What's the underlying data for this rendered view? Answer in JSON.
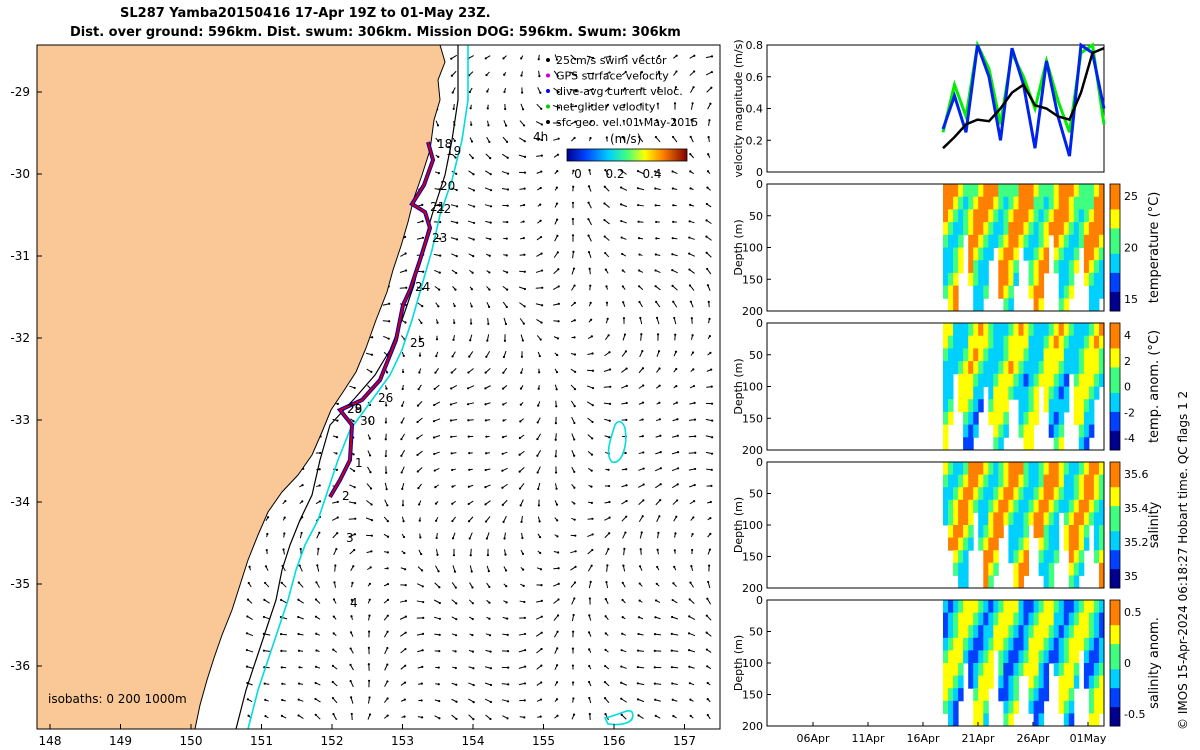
{
  "title": {
    "line1": "SL287 Yamba20150416 17-Apr 19Z to 01-May 23Z.",
    "line2": "Dist. over ground: 596km. Dist. swum: 306km. Mission DOG: 596km. Swum: 306km"
  },
  "map": {
    "lon_ticks": [
      "148",
      "149",
      "150",
      "151",
      "152",
      "153",
      "154",
      "155",
      "156",
      "157"
    ],
    "lat_ticks": [
      "-29",
      "-30",
      "-31",
      "-32",
      "-33",
      "-34",
      "-35",
      "-36"
    ],
    "legend": [
      "25cm/s swim vector",
      "GPS surface velocity",
      "dive-avg current veloc.",
      "net glider velocity",
      "sfc geo. vel. 01-May-2015"
    ],
    "legend_marker_colors": [
      "#000000",
      "#cc00cc",
      "#0000ff",
      "#00cc00",
      "#000000"
    ],
    "colorbar": {
      "hour_label": "4h",
      "units": "(m/s)",
      "ticks": [
        "0",
        "0.2",
        "0.4"
      ]
    },
    "day_labels": [
      "18",
      "19",
      "20",
      "21",
      "22",
      "23",
      "24",
      "25",
      "26",
      "28",
      "29",
      "30",
      "1",
      "2",
      "3",
      "4"
    ],
    "isobaths_label": "isobaths: 0   200  1000m",
    "land_color": "#f9c896",
    "track_color": "#cc0000",
    "track_glider_color": "#0000cc",
    "isobath_color": "#00dddd"
  },
  "chart_data": [
    {
      "type": "line",
      "ylabel": "velocity magnitude (m/s)",
      "ylim": [
        0,
        0.8
      ],
      "yticks": [
        "0",
        "0.2",
        "0.4",
        "0.6",
        "0.8"
      ],
      "x_dates": [
        "17-Apr",
        "18-Apr",
        "19-Apr",
        "20-Apr",
        "21-Apr",
        "22-Apr",
        "23-Apr",
        "24-Apr",
        "25-Apr",
        "26-Apr",
        "27-Apr",
        "28-Apr",
        "29-Apr",
        "30-Apr",
        "01-May"
      ],
      "series": [
        {
          "color": "#00ee00",
          "values": [
            0.25,
            0.55,
            0.35,
            0.8,
            0.65,
            0.3,
            0.75,
            0.6,
            0.4,
            0.7,
            0.45,
            0.25,
            0.75,
            0.8,
            0.3
          ]
        },
        {
          "color": "#0022ee",
          "values": [
            0.27,
            0.48,
            0.25,
            0.8,
            0.6,
            0.2,
            0.78,
            0.55,
            0.15,
            0.7,
            0.35,
            0.1,
            0.8,
            0.75,
            0.4
          ]
        },
        {
          "color": "#000000",
          "values": [
            0.15,
            0.22,
            0.3,
            0.33,
            0.32,
            0.4,
            0.5,
            0.55,
            0.42,
            0.4,
            0.35,
            0.33,
            0.5,
            0.75,
            0.78
          ]
        }
      ]
    },
    {
      "type": "heatmap",
      "ylabel": "Depth (m)",
      "cblabel": "temperature (°C)",
      "yticks": [
        "0",
        "50",
        "100",
        "150",
        "200"
      ],
      "cbticks": [
        "25",
        "20",
        "15"
      ]
    },
    {
      "type": "heatmap",
      "ylabel": "Depth (m)",
      "cblabel": "temp. anom. (°C)",
      "yticks": [
        "0",
        "50",
        "100",
        "150",
        "200"
      ],
      "cbticks": [
        "4",
        "2",
        "0",
        "-2",
        "-4"
      ]
    },
    {
      "type": "heatmap",
      "ylabel": "Depth (m)",
      "cblabel": "salinity",
      "yticks": [
        "0",
        "50",
        "100",
        "150",
        "200"
      ],
      "cbticks": [
        "35.6",
        "35.4",
        "35.2",
        "35"
      ]
    },
    {
      "type": "heatmap",
      "ylabel": "Depth (m)",
      "cblabel": "salinity anom.",
      "yticks": [
        "0",
        "50",
        "100",
        "150",
        "200"
      ],
      "cbticks": [
        "0.5",
        "0",
        "-0.5"
      ],
      "xticks": [
        "06Apr",
        "11Apr",
        "16Apr",
        "21Apr",
        "26Apr",
        "01May"
      ]
    }
  ],
  "credit": "© IMOS 15-Apr-2024 06:18:27 Hobart time. QC flags 1  2"
}
